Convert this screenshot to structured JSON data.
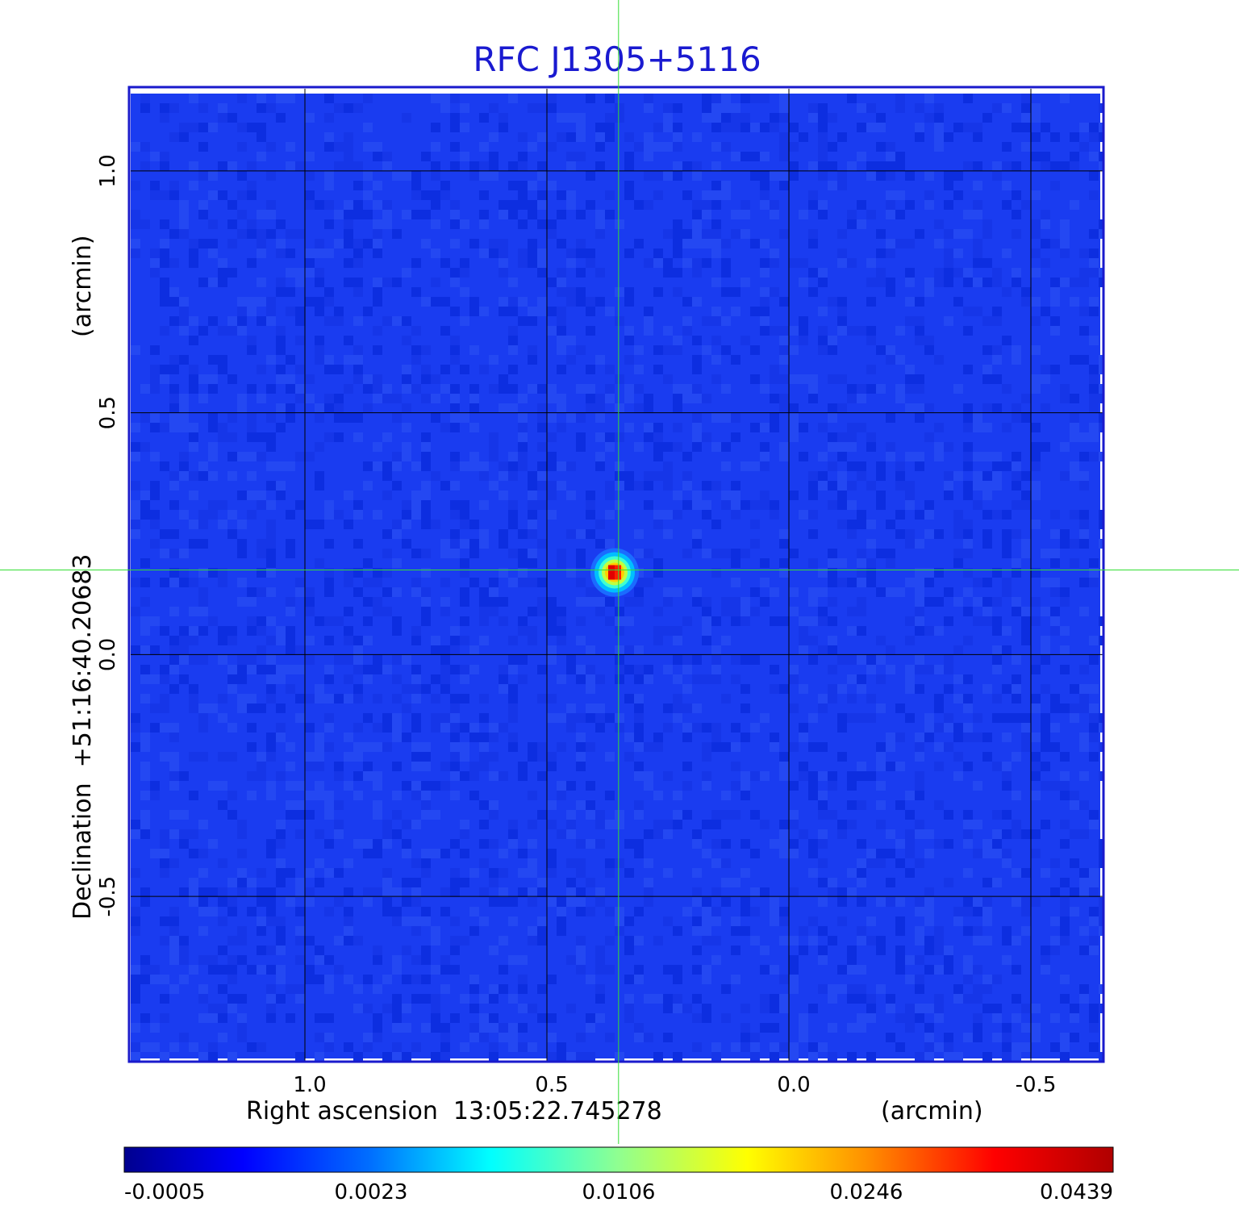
{
  "chart_data": {
    "type": "heatmap",
    "title": "RFC J1305+5116",
    "xlabel": "Right ascension  13:05:22.745278",
    "xunit": "(arcmin)",
    "ylabel": "Declination  +51:16:40.20683",
    "yunit": "(arcmin)",
    "x_ticks": [
      "1.0",
      "0.5",
      "0.0",
      "-0.5"
    ],
    "x_tick_values": [
      1.0,
      0.5,
      0.0,
      -0.5
    ],
    "y_ticks": [
      "1.0",
      "0.5",
      "0.0",
      "-0.5"
    ],
    "y_tick_values": [
      1.0,
      0.5,
      0.0,
      -0.5
    ],
    "xlim": [
      1.36,
      -0.65
    ],
    "ylim": [
      -0.84,
      1.17
    ],
    "grid": true,
    "source": {
      "x": 0.36,
      "y": 0.17,
      "peak": 0.0439
    },
    "crosshair": {
      "x": 0.352,
      "y": 0.175
    },
    "colorbar": {
      "ticks": [
        "-0.0005",
        "0.0023",
        "0.0106",
        "0.0246",
        "0.0439"
      ],
      "colormap": "jet"
    },
    "colors": {
      "title": "#1a1ad0",
      "frame": "#1a1acc",
      "background_map": "#1a3cf0",
      "crosshair": "#33dd33"
    }
  }
}
